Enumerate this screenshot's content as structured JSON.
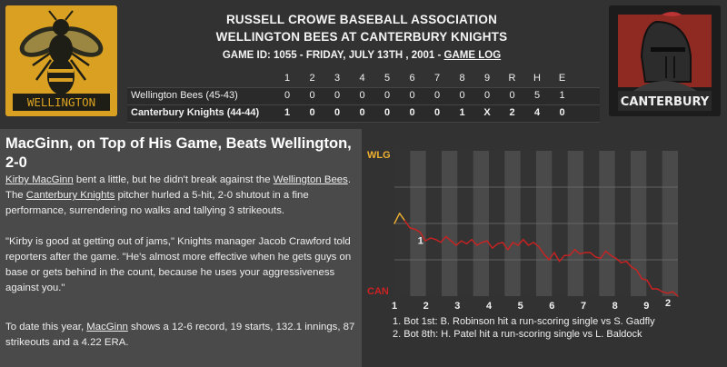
{
  "header": {
    "association": "RUSSELL CROWE BASEBALL ASSOCIATION",
    "matchup": "WELLINGTON BEES AT CANTERBURY KNIGHTS",
    "game_info": "GAME ID: 1055 - FRIDAY, JULY 13TH , 2001 - ",
    "game_log_link": "GAME LOG"
  },
  "logos": {
    "left_text": "WELLINGTON",
    "right_text": "CANTERBURY"
  },
  "linescore": {
    "columns": [
      "1",
      "2",
      "3",
      "4",
      "5",
      "6",
      "7",
      "8",
      "9",
      "R",
      "H",
      "E"
    ],
    "rows": [
      {
        "team": "Wellington Bees (45-43)",
        "cells": [
          "0",
          "0",
          "0",
          "0",
          "0",
          "0",
          "0",
          "0",
          "0",
          "0",
          "5",
          "1"
        ]
      },
      {
        "team": "Canterbury Knights (44-44)",
        "cells": [
          "1",
          "0",
          "0",
          "0",
          "0",
          "0",
          "0",
          "1",
          "X",
          "2",
          "4",
          "0"
        ]
      }
    ]
  },
  "article": {
    "headline": "MacGinn, on Top of His Game, Beats Wellington, 2-0",
    "p1": {
      "a": "Kirby MacGinn",
      "b": " bent a little, but he didn't break against the ",
      "c": "Wellington Bees",
      "d": ". The ",
      "e": "Canterbury Knights",
      "f": " pitcher hurled a 5-hit, 2-0 shutout in a fine performance, surrendering no walks and tallying 3 strikeouts."
    },
    "p2": "\"Kirby is good at getting out of jams,\" Knights manager Jacob Crawford told reporters after the game. \"He's almost more effective when he gets guys on base or gets behind in the count, because he uses your aggressiveness against you.\"",
    "p3": {
      "a": "To date this year, ",
      "b": "MacGinn",
      "c": " shows a 12-6 record, 19 starts, 132.1 innings, 87 strikeouts and a 4.22 ERA."
    }
  },
  "chart_data": {
    "type": "line",
    "title": "",
    "y_top_label": "WLG",
    "y_bottom_label": "CAN",
    "x_ticks": [
      "1",
      "2",
      "3",
      "4",
      "5",
      "6",
      "7",
      "8",
      "9"
    ],
    "ylim": [
      0,
      100
    ],
    "series": [
      {
        "values": [
          50,
          57,
          52,
          47,
          46,
          44,
          38,
          40,
          39,
          37,
          41,
          38,
          35,
          38,
          36,
          39,
          35,
          37,
          38,
          33,
          36,
          37,
          32,
          37,
          35,
          39,
          35,
          37,
          34,
          29,
          25,
          30,
          24,
          28,
          28,
          32,
          29,
          30,
          30,
          27,
          26,
          31,
          28,
          26,
          23,
          24,
          20,
          18,
          12,
          11,
          5,
          5,
          3,
          2,
          3,
          0
        ]
      }
    ],
    "markers": [
      {
        "label": "1",
        "index": 4
      },
      {
        "label": "2",
        "index": 52
      }
    ],
    "colors": {
      "home": "#cc2222",
      "away": "#f0b030",
      "shade": "#4a4a4a"
    },
    "notes": [
      "1. Bot 1st: B. Robinson hit a run-scoring single vs S. Gadfly",
      "2. Bot 8th: H. Patel hit a run-scoring single vs L. Baldock"
    ]
  }
}
